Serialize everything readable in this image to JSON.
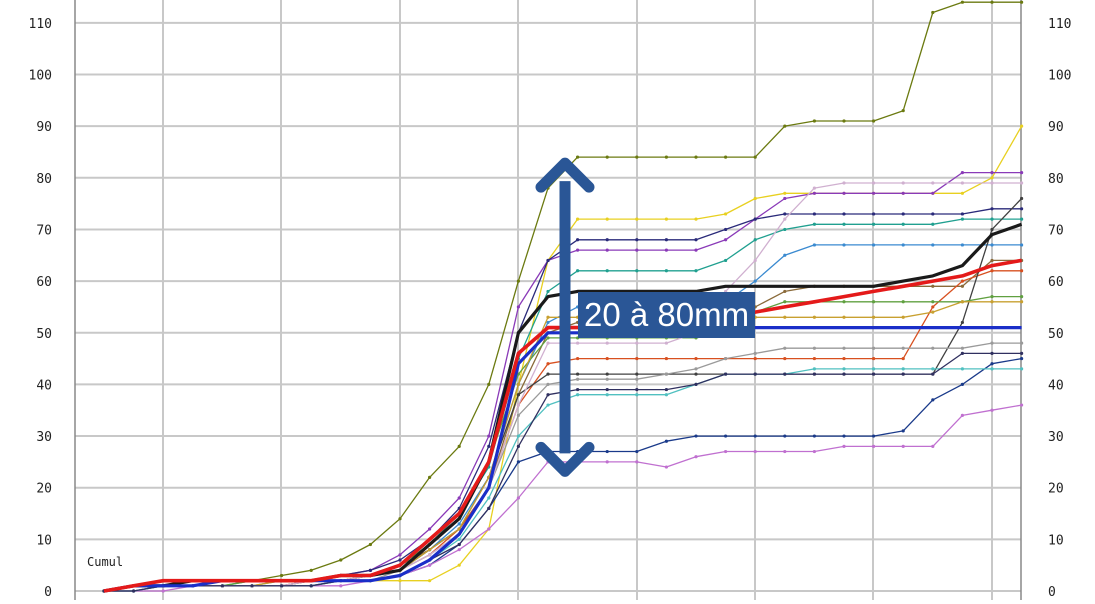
{
  "chart_data": {
    "type": "line",
    "title": "",
    "xlabel": "",
    "ylabel": "",
    "ylim": [
      0,
      115
    ],
    "y_ticks": [
      0,
      10,
      20,
      30,
      40,
      50,
      60,
      70,
      80,
      90,
      100,
      110
    ],
    "y_tick_labels": [
      "0",
      "10",
      "20",
      "30",
      "40",
      "50",
      "60",
      "70",
      "80",
      "90",
      "100",
      "110"
    ],
    "x_steps": 31,
    "grid": true,
    "series_label": "Cumul",
    "annotation": {
      "text": "20 à 80mm",
      "from": 22,
      "to": 84
    },
    "colors": {
      "annotation": "#2a5696",
      "grid": "#c8c8c8",
      "axis_text": "#222222"
    },
    "series": [
      {
        "color": "#6b7a10",
        "width": 1.3,
        "values": [
          0,
          1,
          2,
          2,
          2,
          2,
          3,
          4,
          6,
          9,
          14,
          22,
          28,
          40,
          60,
          78,
          84,
          84,
          84,
          84,
          84,
          84,
          84,
          90,
          91,
          91,
          91,
          93,
          112,
          114,
          114,
          114
        ]
      },
      {
        "color": "#e8d020",
        "width": 1.3,
        "values": [
          0,
          1,
          1,
          1,
          1,
          1,
          1,
          2,
          2,
          2,
          2,
          2,
          5,
          12,
          40,
          64,
          72,
          72,
          72,
          72,
          72,
          73,
          76,
          77,
          77,
          77,
          77,
          77,
          77,
          77,
          80,
          90
        ]
      },
      {
        "color": "#8a3ab8",
        "width": 1.3,
        "values": [
          0,
          1,
          2,
          2,
          2,
          2,
          2,
          2,
          3,
          4,
          7,
          12,
          18,
          30,
          55,
          64,
          66,
          66,
          66,
          66,
          66,
          68,
          72,
          76,
          77,
          77,
          77,
          77,
          77,
          81,
          81,
          81
        ]
      },
      {
        "color": "#2a2a7a",
        "width": 1.3,
        "values": [
          0,
          1,
          1,
          2,
          2,
          2,
          2,
          2,
          3,
          4,
          6,
          10,
          16,
          28,
          50,
          64,
          68,
          68,
          68,
          68,
          68,
          70,
          72,
          73,
          73,
          73,
          73,
          73,
          73,
          73,
          74,
          74
        ]
      },
      {
        "color": "#20a090",
        "width": 1.3,
        "values": [
          0,
          1,
          1,
          1,
          1,
          2,
          2,
          2,
          3,
          3,
          5,
          9,
          15,
          24,
          45,
          58,
          62,
          62,
          62,
          62,
          62,
          64,
          68,
          70,
          71,
          71,
          71,
          71,
          71,
          72,
          72,
          72
        ]
      },
      {
        "color": "#3a8ad0",
        "width": 1.3,
        "values": [
          0,
          1,
          1,
          1,
          1,
          1,
          2,
          2,
          2,
          3,
          4,
          8,
          13,
          22,
          40,
          52,
          55,
          55,
          55,
          55,
          55,
          56,
          60,
          65,
          67,
          67,
          67,
          67,
          67,
          67,
          67,
          67
        ]
      },
      {
        "color": "#8a6a3a",
        "width": 1.3,
        "values": [
          0,
          1,
          1,
          1,
          2,
          2,
          2,
          2,
          3,
          3,
          5,
          8,
          12,
          20,
          38,
          50,
          52,
          52,
          52,
          52,
          52,
          53,
          55,
          58,
          59,
          59,
          59,
          59,
          59,
          59,
          64,
          64
        ]
      },
      {
        "color": "#d85020",
        "width": 1.3,
        "values": [
          0,
          1,
          1,
          1,
          1,
          1,
          1,
          2,
          2,
          3,
          4,
          7,
          12,
          20,
          36,
          44,
          45,
          45,
          45,
          45,
          45,
          45,
          45,
          45,
          45,
          45,
          45,
          45,
          55,
          60,
          62,
          62
        ]
      },
      {
        "color": "#1a3a8a",
        "width": 1.3,
        "values": [
          0,
          0,
          1,
          1,
          1,
          1,
          1,
          1,
          2,
          2,
          3,
          5,
          9,
          16,
          25,
          27,
          27,
          27,
          27,
          29,
          30,
          30,
          30,
          30,
          30,
          30,
          30,
          31,
          37,
          40,
          44,
          45
        ]
      },
      {
        "color": "#c070d0",
        "width": 1.3,
        "values": [
          0,
          0,
          0,
          1,
          1,
          1,
          1,
          1,
          1,
          2,
          3,
          5,
          8,
          12,
          18,
          25,
          25,
          25,
          25,
          24,
          26,
          27,
          27,
          27,
          27,
          28,
          28,
          28,
          28,
          34,
          35,
          36
        ]
      },
      {
        "color": "#404040",
        "width": 1.3,
        "values": [
          0,
          1,
          1,
          1,
          1,
          1,
          1,
          2,
          2,
          3,
          4,
          8,
          12,
          22,
          38,
          42,
          42,
          42,
          42,
          42,
          42,
          42,
          42,
          42,
          42,
          42,
          42,
          42,
          42,
          52,
          70,
          76
        ]
      },
      {
        "color": "#60a040",
        "width": 1.3,
        "values": [
          0,
          1,
          1,
          1,
          1,
          2,
          2,
          2,
          2,
          3,
          5,
          9,
          14,
          25,
          42,
          49,
          49,
          49,
          49,
          49,
          49,
          50,
          54,
          56,
          56,
          56,
          56,
          56,
          56,
          56,
          57,
          57
        ]
      },
      {
        "color": "#9a9a9a",
        "width": 1.3,
        "values": [
          0,
          0,
          1,
          1,
          1,
          1,
          1,
          2,
          2,
          2,
          4,
          7,
          11,
          20,
          34,
          40,
          41,
          41,
          41,
          42,
          43,
          45,
          46,
          47,
          47,
          47,
          47,
          47,
          47,
          47,
          48,
          48
        ]
      },
      {
        "color": "#c8a030",
        "width": 1.3,
        "values": [
          0,
          1,
          1,
          1,
          1,
          1,
          2,
          2,
          2,
          3,
          4,
          8,
          12,
          22,
          40,
          53,
          53,
          53,
          53,
          53,
          53,
          53,
          53,
          53,
          53,
          53,
          53,
          53,
          54,
          56,
          56,
          56
        ]
      },
      {
        "color": "#50c0c0",
        "width": 1.3,
        "values": [
          0,
          0,
          1,
          1,
          1,
          1,
          1,
          1,
          2,
          2,
          3,
          6,
          10,
          18,
          30,
          36,
          38,
          38,
          38,
          38,
          40,
          42,
          42,
          42,
          43,
          43,
          43,
          43,
          43,
          43,
          43,
          43
        ]
      },
      {
        "color": "#d0b0d0",
        "width": 1.3,
        "values": [
          0,
          1,
          1,
          1,
          1,
          1,
          1,
          2,
          2,
          3,
          4,
          7,
          11,
          20,
          36,
          48,
          48,
          48,
          48,
          48,
          50,
          58,
          64,
          72,
          78,
          79,
          79,
          79,
          79,
          79,
          79,
          79
        ]
      },
      {
        "color": "#303060",
        "width": 1.3,
        "values": [
          0,
          0,
          1,
          1,
          1,
          1,
          1,
          1,
          2,
          2,
          3,
          6,
          9,
          16,
          28,
          38,
          39,
          39,
          39,
          39,
          40,
          42,
          42,
          42,
          42,
          42,
          42,
          42,
          42,
          46,
          46,
          46
        ]
      },
      {
        "color": "#1a1a1a",
        "width": 3.2,
        "values": [
          0,
          1,
          1,
          2,
          2,
          2,
          2,
          2,
          3,
          3,
          4,
          9,
          14,
          25,
          50,
          57,
          58,
          58,
          58,
          58,
          58,
          59,
          59,
          59,
          59,
          59,
          59,
          60,
          61,
          63,
          69,
          71
        ]
      },
      {
        "color": "#1a2ec8",
        "width": 3.2,
        "values": [
          0,
          1,
          1,
          1,
          2,
          2,
          2,
          2,
          2,
          2,
          3,
          6,
          11,
          20,
          44,
          50,
          50,
          50,
          50,
          50,
          50,
          50,
          51,
          51,
          51,
          51,
          51,
          51,
          51,
          51,
          51,
          51
        ]
      },
      {
        "color": "#e41a1a",
        "width": 3.6,
        "values": [
          0,
          1,
          2,
          2,
          2,
          2,
          2,
          2,
          3,
          3,
          5,
          10,
          15,
          25,
          46,
          51,
          51,
          51,
          51,
          51,
          52,
          53,
          54,
          55,
          56,
          57,
          58,
          59,
          60,
          61,
          63,
          64
        ]
      }
    ]
  }
}
